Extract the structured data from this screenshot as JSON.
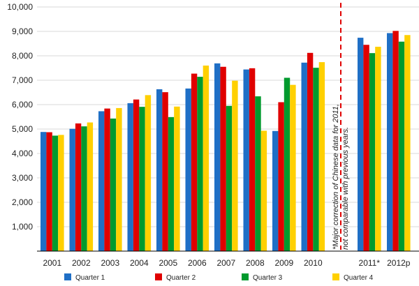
{
  "chart_data": {
    "type": "bar",
    "categories": [
      "2001",
      "2002",
      "2003",
      "2004",
      "2005",
      "2006",
      "2007",
      "2008",
      "2009",
      "2010",
      "2011*",
      "2012p"
    ],
    "series": [
      {
        "name": "Quarter 1",
        "color": "#1f6fc6",
        "values": [
          4880,
          5010,
          5730,
          6060,
          6630,
          6660,
          7690,
          7440,
          4920,
          7720,
          8740,
          8930
        ]
      },
      {
        "name": "Quarter 2",
        "color": "#e00000",
        "values": [
          4870,
          5230,
          5840,
          6210,
          6510,
          7270,
          7550,
          7490,
          6100,
          8120,
          8450,
          9020
        ]
      },
      {
        "name": "Quarter 3",
        "color": "#009a2e",
        "values": [
          4730,
          5110,
          5430,
          5910,
          5490,
          7140,
          5950,
          6340,
          7100,
          7510,
          8110,
          8580
        ]
      },
      {
        "name": "Quarter 4",
        "color": "#ffd000",
        "values": [
          4760,
          5270,
          5860,
          6390,
          5920,
          7600,
          6980,
          4930,
          6810,
          7740,
          8370,
          8850
        ]
      }
    ],
    "y_ticks": [
      "1,000",
      "2,000",
      "3,000",
      "4,000",
      "5,000",
      "6,000",
      "7,000",
      "8,000",
      "9,000",
      "10,000"
    ],
    "ylim": [
      0,
      10000
    ],
    "legend_position": "bottom",
    "annotation": "*Major correction of Chinese data for 2011, not comparable with previous years."
  }
}
